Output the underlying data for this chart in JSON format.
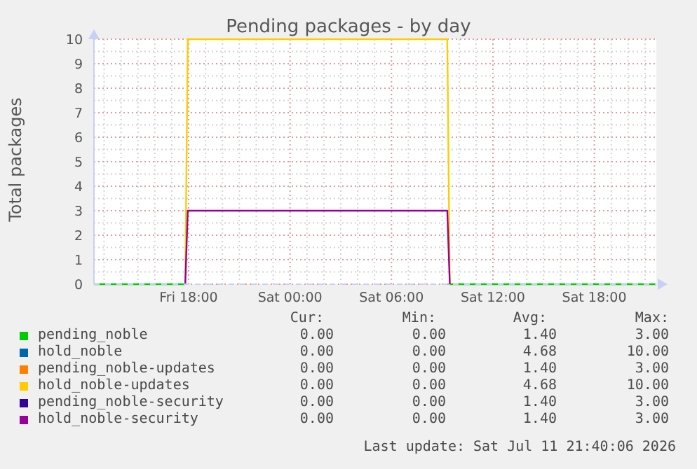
{
  "chart_data": {
    "type": "line",
    "title": "Pending packages - by day",
    "ylabel": "Total packages",
    "x": [
      "2026-07-10T12:24",
      "2026-07-10T17:48",
      "2026-07-10T17:57",
      "2026-07-11T09:18",
      "2026-07-11T09:27",
      "2026-07-11T21:40"
    ],
    "series": [
      {
        "name": "pending_noble",
        "color": "#00cc00",
        "values": [
          0,
          0,
          null,
          null,
          0,
          0
        ]
      },
      {
        "name": "hold_noble",
        "color": "#0066b3",
        "values": [
          null,
          null,
          null,
          null,
          null,
          null
        ]
      },
      {
        "name": "pending_noble-updates",
        "color": "#ff8000",
        "values": [
          null,
          null,
          null,
          null,
          null,
          null
        ]
      },
      {
        "name": "hold_noble-updates",
        "color": "#ffcc00",
        "values": [
          null,
          0,
          10,
          10,
          0,
          null
        ]
      },
      {
        "name": "pending_noble-security",
        "color": "#330099",
        "values": [
          null,
          null,
          null,
          null,
          null,
          null
        ]
      },
      {
        "name": "hold_noble-security",
        "color": "#990099",
        "values": [
          null,
          0,
          3,
          3,
          0,
          null
        ]
      }
    ],
    "xlim": [
      "2026-07-10T12:24",
      "2026-07-11T21:40"
    ],
    "xticks": [
      {
        "value": "2026-07-10T13:00",
        "label": null
      },
      {
        "value": "2026-07-10T14:00",
        "label": null
      },
      {
        "value": "2026-07-10T15:00",
        "label": null
      },
      {
        "value": "2026-07-10T16:00",
        "label": null
      },
      {
        "value": "2026-07-10T17:00",
        "label": null
      },
      {
        "value": "2026-07-10T18:00",
        "label": "Fri 18:00"
      },
      {
        "value": "2026-07-10T19:00",
        "label": null
      },
      {
        "value": "2026-07-10T20:00",
        "label": null
      },
      {
        "value": "2026-07-10T21:00",
        "label": null
      },
      {
        "value": "2026-07-10T22:00",
        "label": null
      },
      {
        "value": "2026-07-10T23:00",
        "label": null
      },
      {
        "value": "2026-07-11T00:00",
        "label": "Sat 00:00"
      },
      {
        "value": "2026-07-11T01:00",
        "label": null
      },
      {
        "value": "2026-07-11T02:00",
        "label": null
      },
      {
        "value": "2026-07-11T03:00",
        "label": null
      },
      {
        "value": "2026-07-11T04:00",
        "label": null
      },
      {
        "value": "2026-07-11T05:00",
        "label": null
      },
      {
        "value": "2026-07-11T06:00",
        "label": "Sat 06:00"
      },
      {
        "value": "2026-07-11T07:00",
        "label": null
      },
      {
        "value": "2026-07-11T08:00",
        "label": null
      },
      {
        "value": "2026-07-11T09:00",
        "label": null
      },
      {
        "value": "2026-07-11T10:00",
        "label": null
      },
      {
        "value": "2026-07-11T11:00",
        "label": null
      },
      {
        "value": "2026-07-11T12:00",
        "label": "Sat 12:00"
      },
      {
        "value": "2026-07-11T13:00",
        "label": null
      },
      {
        "value": "2026-07-11T14:00",
        "label": null
      },
      {
        "value": "2026-07-11T15:00",
        "label": null
      },
      {
        "value": "2026-07-11T16:00",
        "label": null
      },
      {
        "value": "2026-07-11T17:00",
        "label": null
      },
      {
        "value": "2026-07-11T18:00",
        "label": "Sat 18:00"
      },
      {
        "value": "2026-07-11T19:00",
        "label": null
      },
      {
        "value": "2026-07-11T20:00",
        "label": null
      },
      {
        "value": "2026-07-11T21:00",
        "label": null
      }
    ],
    "ylim": [
      0,
      10
    ],
    "yticks": [
      0,
      {
        "value": 0.5,
        "label": null
      },
      1,
      {
        "value": 1.5,
        "label": null
      },
      2,
      {
        "value": 2.5,
        "label": null
      },
      3,
      {
        "value": 3.5,
        "label": null
      },
      4,
      {
        "value": 4.5,
        "label": null
      },
      5,
      {
        "value": 5.5,
        "label": null
      },
      6,
      {
        "value": 6.5,
        "label": null
      },
      7,
      {
        "value": 7.5,
        "label": null
      },
      8,
      {
        "value": 8.5,
        "label": null
      },
      9,
      {
        "value": 9.5,
        "label": null
      },
      10
    ],
    "grid": true,
    "legend": "bottom",
    "annotations": [
      "Cur:",
      "Min:",
      "Avg:",
      "Max:",
      "0.00",
      "0.00",
      "1.40",
      "3.00",
      "0.00",
      "0.00",
      "4.68",
      "10.00",
      "0.00",
      "0.00",
      "1.40",
      "3.00",
      "0.00",
      "0.00",
      "4.68",
      "10.00",
      "0.00",
      "0.00",
      "1.40",
      "3.00",
      "0.00",
      "0.00",
      "1.40",
      "3.00",
      "Last update: Sat Jul 11 21:40:06 2026"
    ]
  }
}
